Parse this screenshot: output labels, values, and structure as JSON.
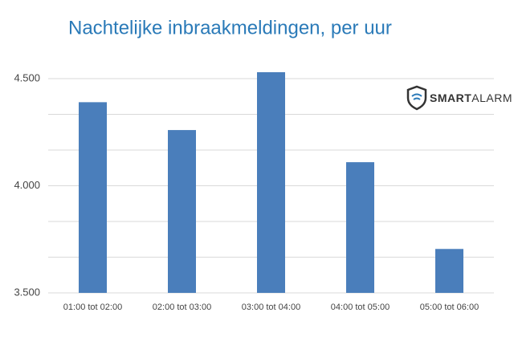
{
  "chart_data": {
    "type": "bar",
    "title": "Nachtelijke inbraakmeldingen, per uur",
    "logo": {
      "text_bold": "SMART",
      "text": "ALARM"
    },
    "categories": [
      "01:00 tot 02:00",
      "02:00 tot 03:00",
      "03:00 tot 04:00",
      "04:00 tot 05:00",
      "05:00 tot 06:00"
    ],
    "values": [
      4390,
      4260,
      4530,
      4110,
      3705
    ],
    "color": "#4a7ebb",
    "ylim": [
      3500,
      4600
    ],
    "yticks": [
      {
        "value": 3500,
        "label": "3.500"
      },
      {
        "value": 4000,
        "label": "4.000"
      },
      {
        "value": 4500,
        "label": "4.500"
      }
    ],
    "minor_yticks": [
      3666.7,
      3833.3,
      4166.7,
      4333.3
    ],
    "grid": true
  }
}
